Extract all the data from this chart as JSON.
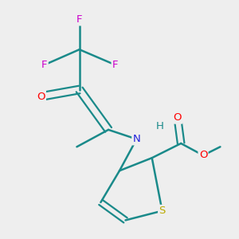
{
  "background_color": "#eeeeee",
  "atom_colors": {
    "F": "#cc00cc",
    "O": "#ff0000",
    "N": "#2222dd",
    "S": "#bbaa00",
    "C": "#1a8a8a",
    "H": "#1a8a8a",
    "bond": "#1a8a8a"
  },
  "figsize": [
    3.0,
    3.0
  ],
  "dpi": 100
}
